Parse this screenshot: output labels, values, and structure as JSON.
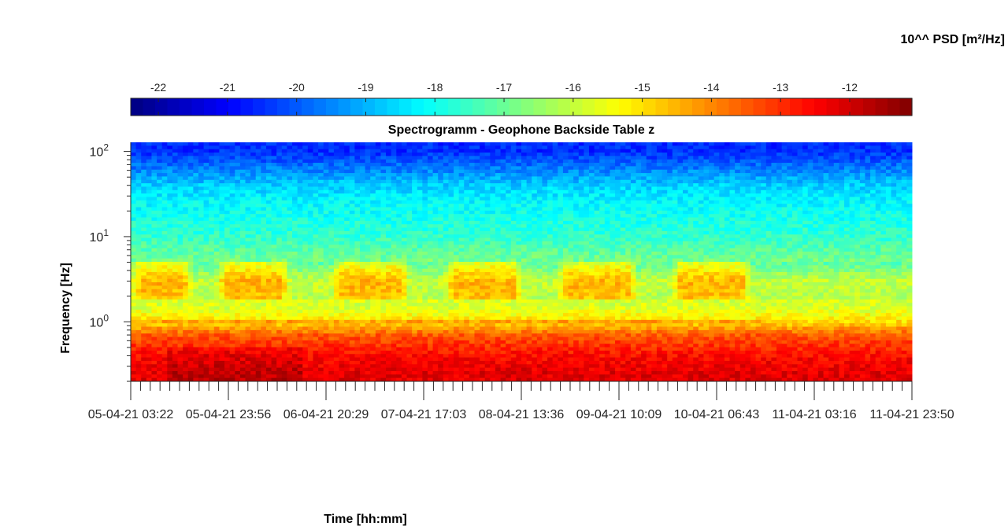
{
  "chart_data": {
    "type": "heatmap",
    "title": "Spectrogramm - Geophone Backside Table z",
    "xlabel": "Time [hh:mm]",
    "ylabel": "Frequency [Hz]",
    "y_scale": "log",
    "ylim": [
      0.2,
      128
    ],
    "y_ticks": [
      {
        "base": "10",
        "exp": "0",
        "value": 1
      },
      {
        "base": "10",
        "exp": "1",
        "value": 10
      },
      {
        "base": "10",
        "exp": "2",
        "value": 100
      }
    ],
    "x_tick_labels": [
      "05-04-21 03:22",
      "05-04-21 23:56",
      "06-04-21 20:29",
      "07-04-21 17:03",
      "08-04-21 13:36",
      "09-04-21 10:09",
      "10-04-21 06:43",
      "11-04-21 03:16",
      "11-04-21 23:50"
    ],
    "colorbar": {
      "label": "10^^ PSD [m²/Hz]",
      "colormap": "jet",
      "range": [
        -22.4,
        -11.1
      ],
      "ticks": [
        "-22",
        "-21",
        "-20",
        "-19",
        "-18",
        "-17",
        "-16",
        "-15",
        "-14",
        "-13",
        "-12"
      ],
      "tick_values": [
        -22,
        -21,
        -20,
        -19,
        -18,
        -17,
        -16,
        -15,
        -14,
        -13,
        -12
      ],
      "location": "top"
    },
    "spectrum_profile": [
      {
        "freq": 100,
        "log_psd": -20.5
      },
      {
        "freq": 60,
        "log_psd": -19.5
      },
      {
        "freq": 40,
        "log_psd": -18.7
      },
      {
        "freq": 25,
        "log_psd": -18.2
      },
      {
        "freq": 10,
        "log_psd": -17.6
      },
      {
        "freq": 5,
        "log_psd": -16.8
      },
      {
        "freq": 3,
        "log_psd": -15.6
      },
      {
        "freq": 1.5,
        "log_psd": -15.8
      },
      {
        "freq": 1,
        "log_psd": -15.0
      },
      {
        "freq": 0.7,
        "log_psd": -13.5
      },
      {
        "freq": 0.4,
        "log_psd": -12.6
      },
      {
        "freq": 0.25,
        "log_psd": -12.2
      }
    ],
    "daily_activity_bands": [
      {
        "start_day": 0.0,
        "end_day": 0.55
      },
      {
        "start_day": 0.75,
        "end_day": 1.4
      },
      {
        "start_day": 1.75,
        "end_day": 2.45
      },
      {
        "start_day": 2.75,
        "end_day": 3.45
      },
      {
        "start_day": 3.75,
        "end_day": 4.45
      },
      {
        "start_day": 4.75,
        "end_day": 5.45
      }
    ],
    "x_range_days": [
      0,
      6.86
    ]
  }
}
